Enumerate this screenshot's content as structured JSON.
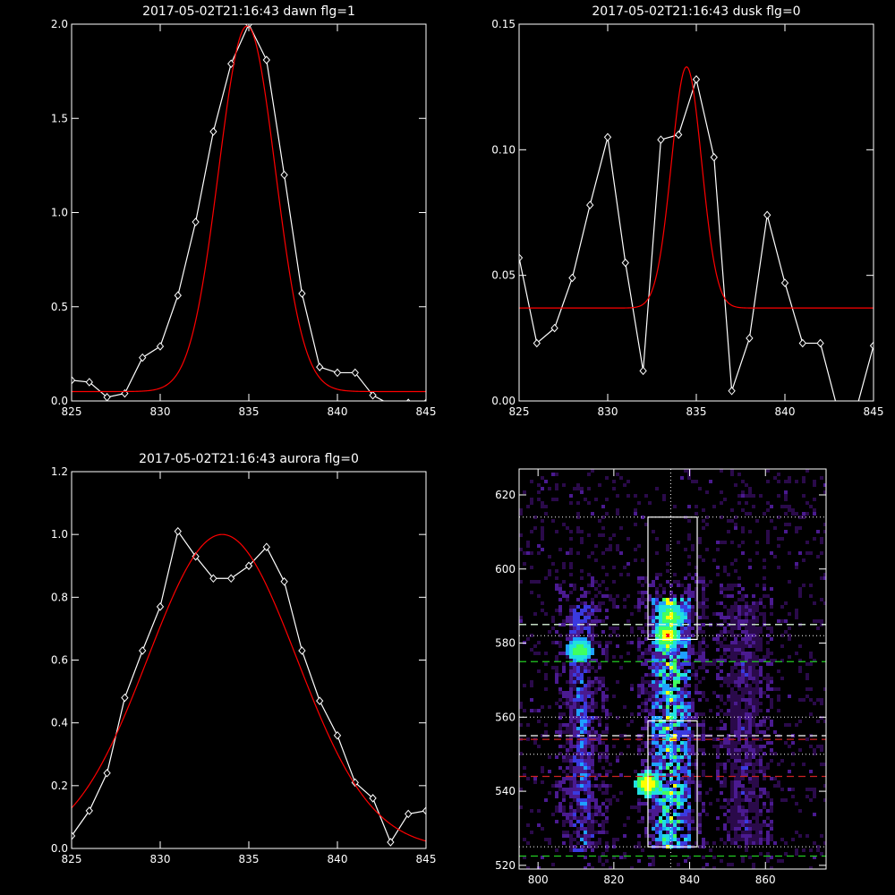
{
  "chart_data": [
    {
      "type": "line",
      "title": "2017-05-02T21:16:43 dawn flg=1",
      "xlim": [
        825,
        845
      ],
      "ylim": [
        0,
        2.0
      ],
      "xticks": [
        "825",
        "830",
        "835",
        "840",
        "845"
      ],
      "yticks": [
        "0.0",
        "0.5",
        "1.0",
        "1.5",
        "2.0"
      ],
      "xtick_values": [
        825,
        830,
        835,
        840,
        845
      ],
      "ytick_values": [
        0,
        0.5,
        1.0,
        1.5,
        2.0
      ],
      "series": [
        {
          "color": "#ffffff",
          "marker": "diamond",
          "x": [
            825,
            826,
            827,
            828,
            829,
            830,
            831,
            832,
            833,
            834,
            835,
            836,
            837,
            838,
            839,
            840,
            841,
            842,
            843,
            844,
            845
          ],
          "y": [
            0.11,
            0.1,
            0.02,
            0.04,
            0.23,
            0.29,
            0.56,
            0.95,
            1.43,
            1.79,
            2.0,
            1.81,
            1.2,
            0.57,
            0.18,
            0.15,
            0.15,
            0.03,
            -0.02,
            -0.01,
            -0.01
          ]
        },
        {
          "color": "#ff0000",
          "marker": "none",
          "gaussian": {
            "amplitude": 1.94,
            "center": 834.9,
            "sigma": 1.6,
            "baseline": 0.05
          }
        }
      ]
    },
    {
      "type": "line",
      "title": "2017-05-02T21:16:43 dusk flg=0",
      "xlim": [
        825,
        845
      ],
      "ylim": [
        0,
        0.15
      ],
      "xticks": [
        "825",
        "830",
        "835",
        "840",
        "845"
      ],
      "yticks": [
        "0.00",
        "0.05",
        "0.10",
        "0.15"
      ],
      "xtick_values": [
        825,
        830,
        835,
        840,
        845
      ],
      "ytick_values": [
        0,
        0.05,
        0.1,
        0.15
      ],
      "series": [
        {
          "color": "#ffffff",
          "marker": "diamond",
          "x": [
            825,
            826,
            827,
            828,
            829,
            830,
            831,
            832,
            833,
            834,
            835,
            836,
            837,
            838,
            839,
            840,
            841,
            842,
            843,
            844,
            845
          ],
          "y": [
            0.057,
            0.023,
            0.029,
            0.049,
            0.078,
            0.105,
            0.055,
            0.012,
            0.104,
            0.106,
            0.128,
            0.097,
            0.004,
            0.025,
            0.074,
            0.047,
            0.023,
            0.023,
            -0.004,
            -0.004,
            0.022
          ]
        },
        {
          "color": "#ff0000",
          "marker": "none",
          "gaussian": {
            "amplitude": 0.096,
            "center": 834.45,
            "sigma": 0.85,
            "baseline": 0.037
          }
        }
      ]
    },
    {
      "type": "line",
      "title": "2017-05-02T21:16:43 aurora flg=0",
      "xlim": [
        825,
        845
      ],
      "ylim": [
        0,
        1.2
      ],
      "xticks": [
        "825",
        "830",
        "835",
        "840",
        "845"
      ],
      "yticks": [
        "0.0",
        "0.2",
        "0.4",
        "0.6",
        "0.8",
        "1.0",
        "1.2"
      ],
      "xtick_values": [
        825,
        830,
        835,
        840,
        845
      ],
      "ytick_values": [
        0,
        0.2,
        0.4,
        0.6,
        0.8,
        1.0,
        1.2
      ],
      "series": [
        {
          "color": "#ffffff",
          "marker": "diamond",
          "x": [
            825,
            826,
            827,
            828,
            829,
            830,
            831,
            832,
            833,
            834,
            835,
            836,
            837,
            838,
            839,
            840,
            841,
            842,
            843,
            844,
            845
          ],
          "y": [
            0.04,
            0.12,
            0.24,
            0.48,
            0.63,
            0.77,
            1.01,
            0.93,
            0.86,
            0.86,
            0.9,
            0.96,
            0.85,
            0.63,
            0.47,
            0.36,
            0.21,
            0.16,
            0.02,
            0.11,
            0.12
          ]
        },
        {
          "color": "#ff0000",
          "marker": "none",
          "gaussian": {
            "amplitude": 1.0,
            "center": 833.5,
            "sigma": 4.2,
            "baseline": 0.0
          }
        }
      ]
    },
    {
      "type": "heatmap",
      "xlim": [
        795,
        876
      ],
      "ylim": [
        519,
        627
      ],
      "xticks": [
        "800",
        "820",
        "840",
        "860"
      ],
      "yticks": [
        "520",
        "540",
        "560",
        "580",
        "600",
        "620"
      ],
      "xtick_values": [
        800,
        820,
        840,
        860
      ],
      "ytick_values": [
        520,
        540,
        560,
        580,
        600,
        620
      ],
      "colormap": [
        "#000000",
        "#2a0a4a",
        "#4a1a90",
        "#3a3ae0",
        "#1fa0ff",
        "#20e0e0",
        "#40ff60",
        "#ffff00",
        "#ff0000"
      ],
      "streaks": [
        {
          "x_range": [
            808,
            815
          ],
          "y_range": [
            524,
            590
          ],
          "intensity": 0.55
        },
        {
          "x_range": [
            830,
            840
          ],
          "y_range": [
            525,
            592
          ],
          "intensity": 0.95
        },
        {
          "x_range": [
            851,
            858
          ],
          "y_range": [
            526,
            590
          ],
          "intensity": 0.35
        }
      ],
      "hotspots": [
        {
          "x": 834,
          "y": 582,
          "intensity": 1.0
        },
        {
          "x": 829,
          "y": 542,
          "intensity": 1.0
        },
        {
          "x": 811,
          "y": 578,
          "intensity": 0.85
        },
        {
          "x": 835,
          "y": 587,
          "intensity": 0.9
        }
      ],
      "boxes": [
        {
          "x": [
            829,
            842
          ],
          "y": [
            581,
            614
          ]
        },
        {
          "x": [
            829,
            842
          ],
          "y": [
            525,
            559
          ]
        }
      ],
      "vertical_dotted_line_x": 835,
      "horizontal_dotted_lines_y": [
        614,
        582,
        560,
        550,
        525
      ],
      "white_dashed_lines_y": [
        585,
        555
      ],
      "green_dashed_lines_y": [
        585,
        575,
        522.5
      ],
      "red_dashed_lines_y": [
        554,
        544
      ]
    }
  ]
}
